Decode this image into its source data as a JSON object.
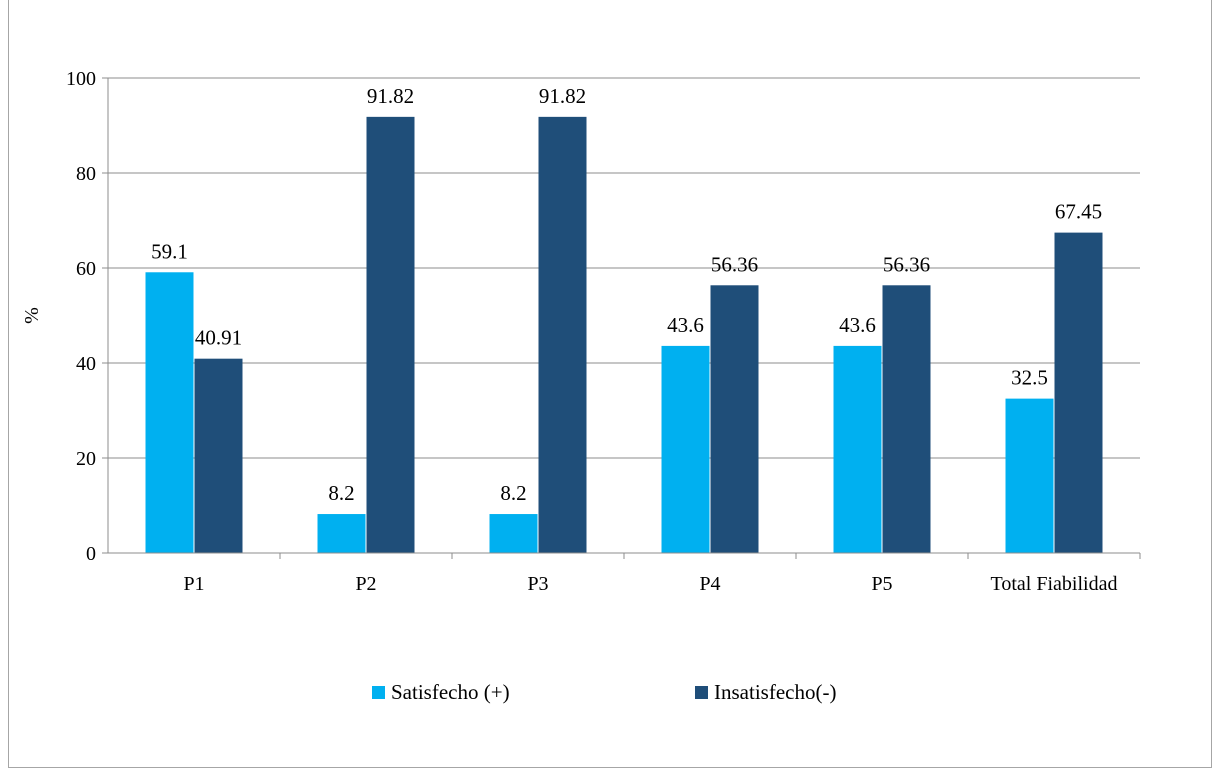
{
  "chart_data": {
    "type": "bar",
    "categories": [
      "P1",
      "P2",
      "P3",
      "P4",
      "P5",
      "Total Fiabilidad"
    ],
    "series": [
      {
        "name": "Satisfecho (+)",
        "values": [
          59.1,
          8.2,
          8.2,
          43.6,
          43.6,
          32.5
        ],
        "labels": [
          "59.1",
          "8.2",
          "8.2",
          "43.6",
          "43.6",
          "32.5"
        ],
        "color": "#00b0f0"
      },
      {
        "name": "Insatisfecho(-)",
        "values": [
          40.91,
          91.82,
          91.82,
          56.36,
          56.36,
          67.45
        ],
        "labels": [
          "40.91",
          "91.82",
          "91.82",
          "56.36",
          "56.36",
          "67.45"
        ],
        "color": "#1f4e79"
      }
    ],
    "ylabel": "%",
    "ylim": [
      0,
      100
    ],
    "yticks": [
      "0",
      "20",
      "40",
      "60",
      "80",
      "100"
    ],
    "grid": true,
    "legend": "bottom"
  }
}
